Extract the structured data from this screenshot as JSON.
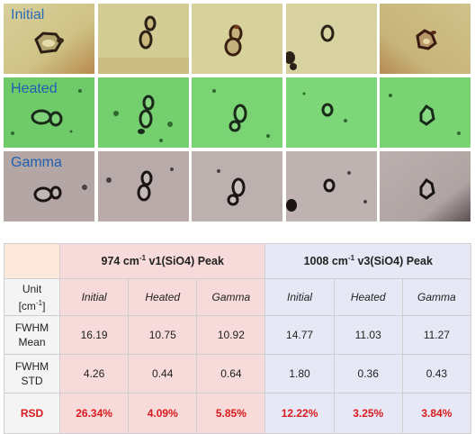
{
  "rows": [
    {
      "label": "Initial",
      "label_color": "#2a6bb8"
    },
    {
      "label": "Heated",
      "label_color": "#1f5fb0"
    },
    {
      "label": "Gamma",
      "label_color": "#1f5fb0"
    }
  ],
  "table": {
    "peak1": {
      "prefix": "974 cm",
      "sup": "-1",
      "suffix": " v1(SiO4) Peak"
    },
    "peak2": {
      "prefix": "1008 cm",
      "sup": "-1",
      "suffix": " v3(SiO4) Peak"
    },
    "unit_line1": "Unit",
    "unit_line2": "[cm",
    "unit_sup": "-1",
    "unit_close": "]",
    "conditions": [
      "Initial",
      "Heated",
      "Gamma",
      "Initial",
      "Heated",
      "Gamma"
    ],
    "fwhm_mean": {
      "line1": "FWHM",
      "line2": "Mean",
      "values": [
        "16.19",
        "10.75",
        "10.92",
        "14.77",
        "11.03",
        "11.27"
      ]
    },
    "fwhm_std": {
      "line1": "FWHM",
      "line2": "STD",
      "values": [
        "4.26",
        "0.44",
        "0.64",
        "1.80",
        "0.36",
        "0.43"
      ]
    },
    "rsd": {
      "label": "RSD",
      "values": [
        "26.34%",
        "4.09%",
        "5.85%",
        "12.22%",
        "3.25%",
        "3.84%"
      ]
    }
  },
  "colors": {
    "initial_bg": "#cfc487",
    "heated_bg": "#6fce6a",
    "gamma_bg": "#b9adab",
    "rsd_text": "#d9191c",
    "peak1_header": "#f7dada",
    "peak2_header": "#e6e9f5"
  }
}
